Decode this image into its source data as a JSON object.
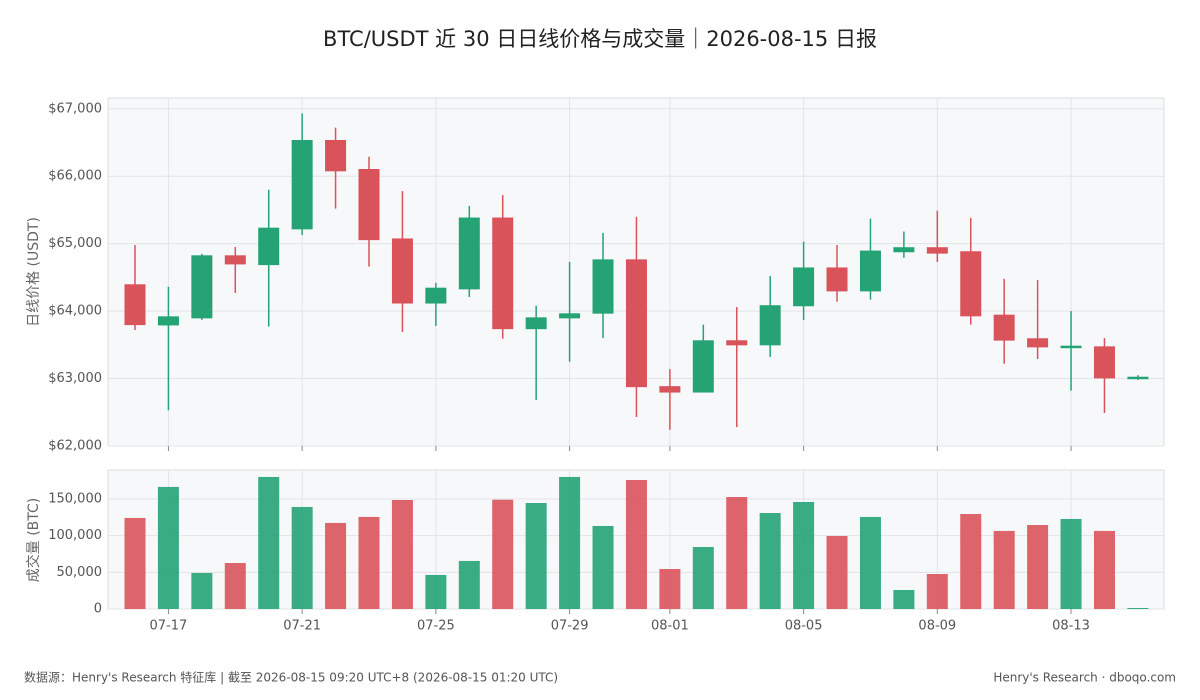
{
  "chart_data": {
    "type": "candlestick",
    "title": "BTC/USDT 近 30 日日线价格与成交量｜2026-08-15 日报",
    "y_label": "日线价格 (USDT)",
    "volume_label": "成交量 (BTC)",
    "up_color": "#25a375",
    "down_color": "#d9535a",
    "grid": true,
    "categories": [
      null,
      "07-17",
      null,
      null,
      null,
      "07-21",
      null,
      null,
      null,
      "07-25",
      null,
      null,
      null,
      "07-29",
      null,
      null,
      "08-01",
      null,
      null,
      null,
      "08-05",
      null,
      null,
      null,
      "08-09",
      null,
      null,
      null,
      "08-13",
      null,
      null
    ],
    "open": [
      64390,
      63795,
      63900,
      64820,
      64690,
      65220,
      66530,
      66100,
      65070,
      64120,
      64330,
      65380,
      63740,
      63900,
      63970,
      64760,
      62880,
      62800,
      63560,
      63500,
      64080,
      64640,
      64300,
      64880,
      64940,
      64880,
      63940,
      63590,
      63460,
      63470,
      63010
    ],
    "high": [
      64980,
      64360,
      64850,
      64950,
      65800,
      66930,
      66720,
      66290,
      65780,
      64420,
      65560,
      65720,
      64080,
      64730,
      65160,
      65400,
      63140,
      63800,
      64060,
      64520,
      65030,
      64980,
      65370,
      65180,
      65490,
      65380,
      64480,
      64460,
      64000,
      63600,
      63050
    ],
    "low": [
      63720,
      62530,
      63870,
      64270,
      63770,
      65130,
      65520,
      64660,
      63690,
      63780,
      64210,
      63590,
      62680,
      63250,
      63600,
      62430,
      62240,
      62800,
      62280,
      63320,
      63870,
      64140,
      64170,
      64790,
      64730,
      63800,
      63220,
      63290,
      62820,
      62490,
      62980
    ],
    "close": [
      63800,
      63915,
      64820,
      64700,
      65230,
      66530,
      66080,
      65060,
      64120,
      64340,
      65380,
      63740,
      63900,
      63960,
      64760,
      62880,
      62800,
      63560,
      63500,
      64080,
      64640,
      64300,
      64890,
      64940,
      64860,
      63930,
      63570,
      63470,
      63480,
      63010,
      63020
    ],
    "volume": [
      124100,
      166400,
      49100,
      62700,
      180000,
      139100,
      117300,
      125500,
      148600,
      46400,
      65500,
      149000,
      144500,
      180000,
      113200,
      175900,
      54500,
      84500,
      152700,
      130900,
      145900,
      99500,
      125500,
      25900,
      47700,
      129500,
      106400,
      114500,
      122700,
      106400,
      1400
    ],
    "ylim": [
      62000,
      67160
    ],
    "yticks": [
      {
        "value": 62000,
        "label": "$62,000"
      },
      {
        "value": 63000,
        "label": "$63,000"
      },
      {
        "value": 64000,
        "label": "$64,000"
      },
      {
        "value": 65000,
        "label": "$65,000"
      },
      {
        "value": 66000,
        "label": "$66,000"
      },
      {
        "value": 67000,
        "label": "$67,000"
      }
    ],
    "volume_ylim": [
      0,
      189500
    ],
    "volume_yticks": [
      0,
      {
        "value": 50000,
        "label": "50,000"
      },
      {
        "value": 100000,
        "label": "100,000"
      },
      {
        "value": 150000,
        "label": "150,000"
      }
    ]
  },
  "footer": {
    "source": "数据源：Henry's Research 特征库 | 截至 2026-08-15 09:20 UTC+8 (2026-08-15 01:20 UTC)",
    "brand": "Henry's Research · dboqo.com"
  }
}
